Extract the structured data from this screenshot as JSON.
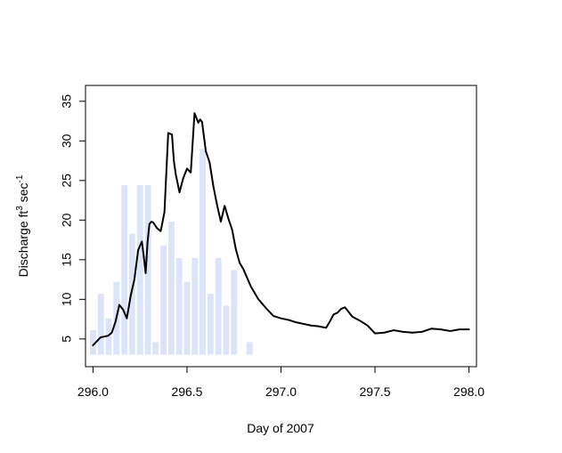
{
  "chart_data": {
    "type": "line",
    "title": "",
    "xlabel": "Day of 2007",
    "ylabel": {
      "prefix": "Discharge ft",
      "sup1": "3",
      "mid": " sec",
      "sup2": "-1"
    },
    "xlim": [
      295.96,
      298.04
    ],
    "ylim": [
      1.5,
      37
    ],
    "x_ticks": [
      296.0,
      296.5,
      297.0,
      297.5,
      298.0
    ],
    "x_tick_labels": [
      "296.0",
      "296.5",
      "297.0",
      "297.5",
      "298.0"
    ],
    "y_ticks": [
      5,
      10,
      15,
      20,
      25,
      30,
      35
    ],
    "y_tick_labels": [
      "5",
      "10",
      "15",
      "20",
      "25",
      "30",
      "35"
    ],
    "grid": false,
    "legend": "none",
    "bar_baseline": 3.0,
    "bar_color": "#dbe4f8",
    "line_color": "#000000",
    "bars": {
      "x": [
        296.0,
        296.042,
        296.083,
        296.125,
        296.167,
        296.208,
        296.25,
        296.292,
        296.333,
        296.375,
        296.417,
        296.458,
        296.5,
        296.542,
        296.583,
        296.625,
        296.667,
        296.708,
        296.75,
        296.833
      ],
      "values": [
        6.1,
        10.7,
        7.6,
        12.2,
        24.4,
        18.3,
        24.4,
        24.4,
        4.6,
        16.8,
        19.8,
        15.2,
        12.2,
        15.2,
        29.0,
        10.7,
        15.2,
        9.2,
        13.7,
        4.6
      ]
    },
    "series": [
      {
        "x": [
          296.0,
          296.02,
          296.04,
          296.06,
          296.08,
          296.1,
          296.12,
          296.14,
          296.16,
          296.18,
          296.2,
          296.22,
          296.24,
          296.26,
          296.27,
          296.28,
          296.29,
          296.3,
          296.31,
          296.32,
          296.34,
          296.36,
          296.38,
          296.4,
          296.42,
          296.43,
          296.44,
          296.46,
          296.48,
          296.5,
          296.52,
          296.54,
          296.56,
          296.57,
          296.58,
          296.6,
          296.62,
          296.64,
          296.66,
          296.68,
          296.7,
          296.72,
          296.74,
          296.76,
          296.78,
          296.8,
          296.84,
          296.88,
          296.92,
          296.96,
          297.0,
          297.04,
          297.08,
          297.12,
          297.16,
          297.2,
          297.24,
          297.26,
          297.28,
          297.3,
          297.32,
          297.34,
          297.38,
          297.42,
          297.46,
          297.5,
          297.55,
          297.6,
          297.65,
          297.7,
          297.75,
          297.8,
          297.85,
          297.9,
          297.95,
          298.0
        ],
        "values": [
          4.2,
          4.7,
          5.2,
          5.3,
          5.4,
          5.8,
          7.2,
          9.3,
          8.7,
          7.6,
          10.4,
          12.5,
          16.2,
          17.3,
          15.4,
          13.3,
          17.2,
          19.5,
          19.8,
          19.7,
          19.0,
          18.6,
          21.0,
          31.0,
          30.8,
          27.5,
          25.8,
          23.5,
          25.3,
          26.5,
          26.0,
          33.5,
          32.3,
          32.7,
          32.4,
          28.7,
          27.3,
          24.3,
          21.9,
          19.8,
          21.8,
          20.2,
          18.8,
          16.3,
          14.6,
          13.8,
          11.6,
          10.0,
          8.9,
          7.9,
          7.6,
          7.4,
          7.1,
          6.9,
          6.7,
          6.6,
          6.4,
          7.2,
          8.1,
          8.3,
          8.8,
          9.0,
          7.8,
          7.3,
          6.7,
          5.7,
          5.8,
          6.1,
          5.9,
          5.8,
          5.9,
          6.3,
          6.2,
          6.0,
          6.2,
          6.2
        ]
      }
    ]
  }
}
